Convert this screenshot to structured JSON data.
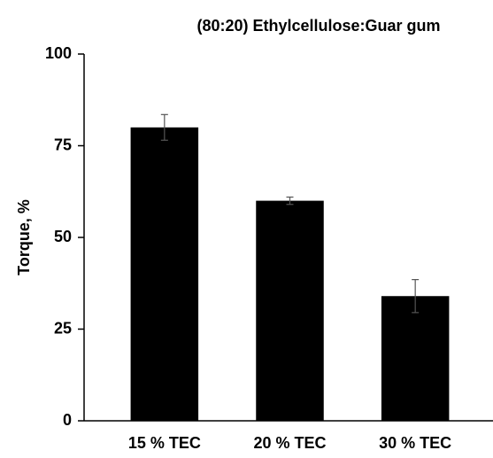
{
  "chart_data": {
    "type": "bar",
    "title": "(80:20) Ethylcellulose:Guar gum",
    "y_label": "Torque, %",
    "categories": [
      "15 % TEC",
      "20 % TEC",
      "30 % TEC"
    ],
    "values": [
      80,
      60,
      34
    ],
    "errors": [
      3.5,
      1,
      4.5
    ],
    "color": "#000000",
    "ylim": [
      0,
      100
    ],
    "yticks": [
      0,
      25,
      50,
      75,
      100
    ],
    "grid": false
  }
}
